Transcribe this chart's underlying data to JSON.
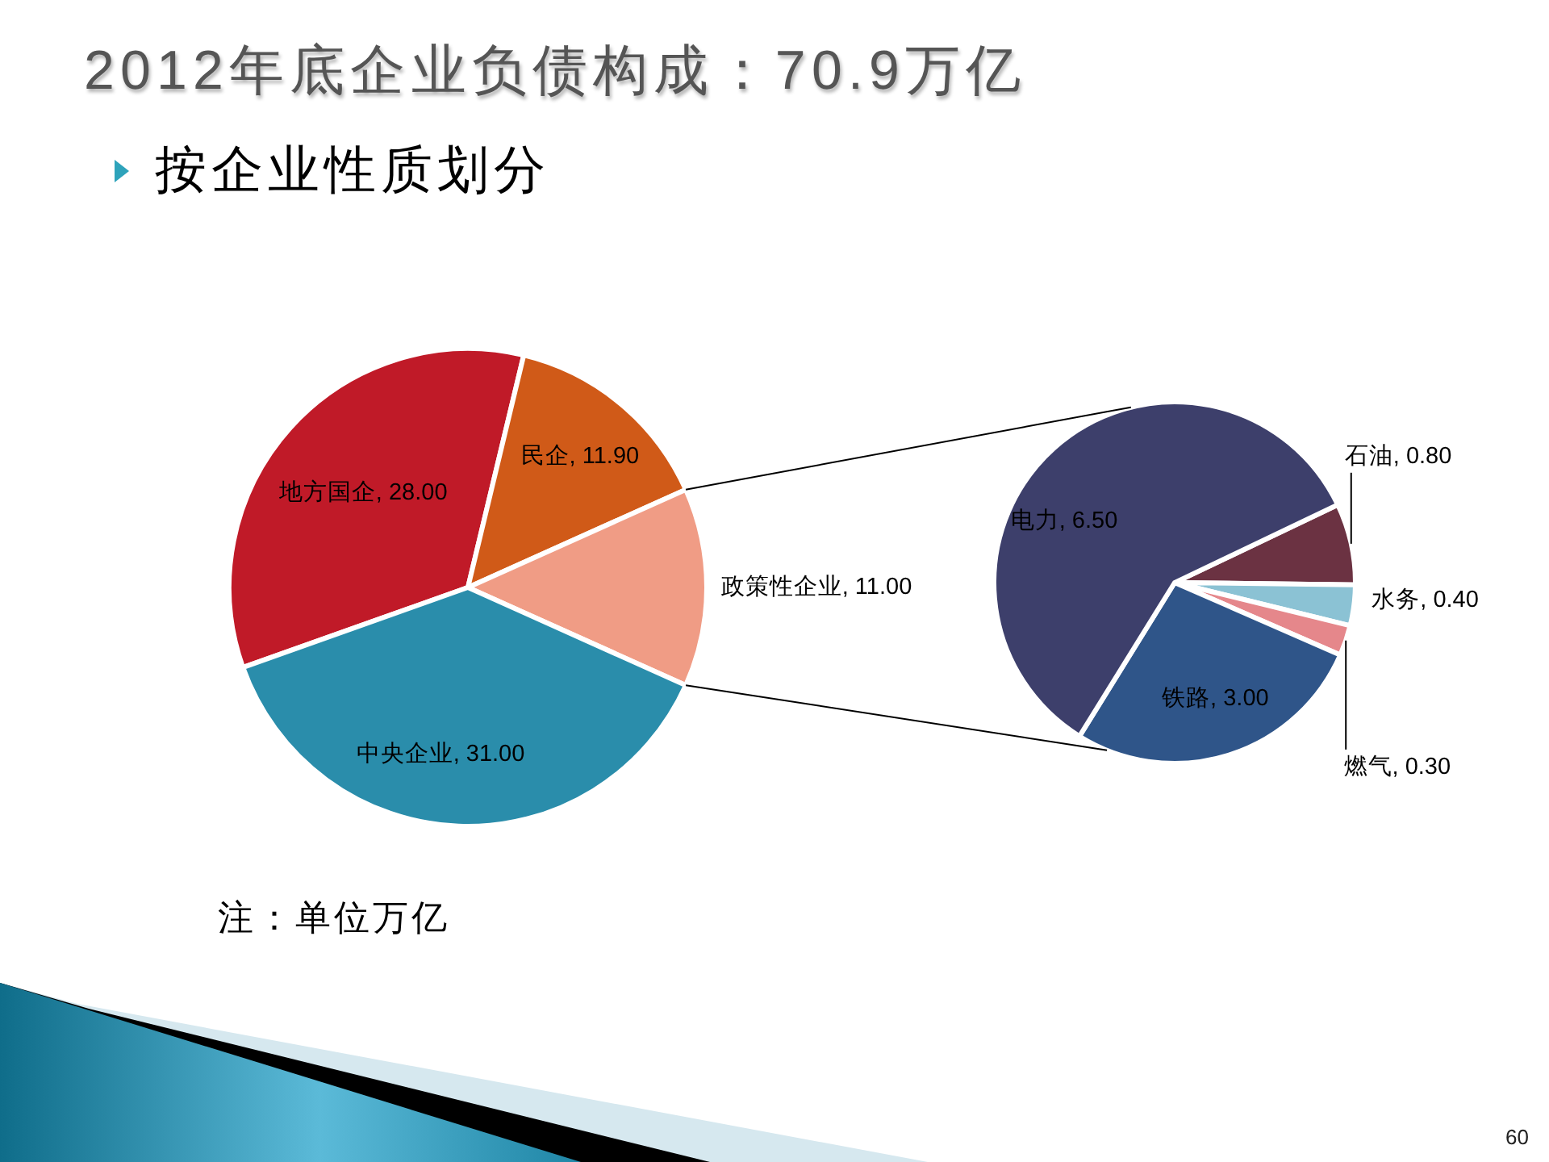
{
  "chart_data": [
    {
      "type": "pie",
      "title": "2012年底企业负债构成：70.9万亿",
      "subtitle": "按企业性质划分",
      "categories": [
        "地方国企",
        "民企",
        "政策性企业",
        "中央企业"
      ],
      "values": [
        28,
        11.9,
        11,
        31
      ],
      "value_labels": [
        "28.00",
        "11.90",
        "11.00",
        "31.00"
      ],
      "colors": [
        "#c01a28",
        "#d05a18",
        "#f09c85",
        "#2a8dab"
      ],
      "annotations": [
        "注：单位万亿",
        "60"
      ]
    },
    {
      "type": "pie",
      "categories": [
        "石油",
        "水务",
        "燃气",
        "铁路",
        "电力"
      ],
      "values": [
        0.8,
        0.4,
        0.3,
        3,
        6.5
      ],
      "value_labels": [
        "0.80",
        "0.40",
        "0.30",
        "3.00",
        "6.50"
      ],
      "colors": [
        "#6b3242",
        "#8bc2d4",
        "#e5878b",
        "#2f5589",
        "#3d3f6b"
      ]
    }
  ]
}
